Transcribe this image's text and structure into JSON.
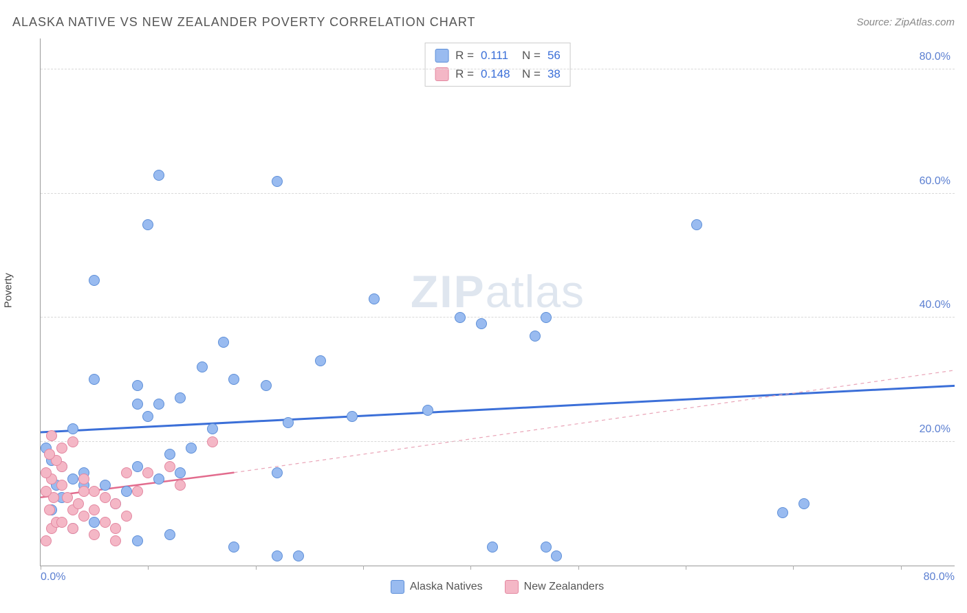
{
  "title": "ALASKA NATIVE VS NEW ZEALANDER POVERTY CORRELATION CHART",
  "source": "Source: ZipAtlas.com",
  "ylabel": "Poverty",
  "watermark_bold": "ZIP",
  "watermark_rest": "atlas",
  "chart": {
    "type": "scatter",
    "background_color": "#ffffff",
    "grid_color": "#d8d8d8",
    "axis_color": "#999999",
    "tick_label_color": "#5b7fd1",
    "tick_fontsize": 16,
    "xlim": [
      0,
      85
    ],
    "ylim": [
      0,
      85
    ],
    "xtick_positions": [
      0,
      10,
      20,
      30,
      40,
      50,
      60,
      70,
      80
    ],
    "xaxis_labels": {
      "left": "0.0%",
      "right": "80.0%"
    },
    "yticks": [
      {
        "pos": 20,
        "label": "20.0%"
      },
      {
        "pos": 40,
        "label": "40.0%"
      },
      {
        "pos": 60,
        "label": "60.0%"
      },
      {
        "pos": 80,
        "label": "80.0%"
      }
    ],
    "marker_radius": 8,
    "marker_border_width": 1.5,
    "marker_fill_opacity": 0.35,
    "series": [
      {
        "name": "Alaska Natives",
        "color_fill": "#99bbf0",
        "color_border": "#5e8fd8",
        "trend": {
          "y0": 21.5,
          "y1": 29,
          "color": "#3b6fd8",
          "width": 3,
          "dash": "none"
        },
        "trend_ext": null,
        "R": "0.111",
        "N": "56",
        "points": [
          [
            42,
            3
          ],
          [
            47,
            3
          ],
          [
            48,
            1.5
          ],
          [
            69,
            8.5
          ],
          [
            71,
            10
          ],
          [
            18,
            3
          ],
          [
            22,
            1.5
          ],
          [
            24,
            1.5
          ],
          [
            12,
            5
          ],
          [
            9,
            4
          ],
          [
            3,
            6
          ],
          [
            5,
            7
          ],
          [
            1,
            9
          ],
          [
            2,
            11
          ],
          [
            1.5,
            13
          ],
          [
            3,
            14
          ],
          [
            4,
            13
          ],
          [
            2,
            16
          ],
          [
            1,
            17
          ],
          [
            0.5,
            19
          ],
          [
            4,
            15
          ],
          [
            6,
            13
          ],
          [
            8,
            12
          ],
          [
            7,
            10
          ],
          [
            9,
            16
          ],
          [
            11,
            14
          ],
          [
            12,
            18
          ],
          [
            14,
            19
          ],
          [
            13,
            15
          ],
          [
            16,
            22
          ],
          [
            10,
            24
          ],
          [
            11,
            26
          ],
          [
            13,
            27
          ],
          [
            9,
            26
          ],
          [
            9,
            29
          ],
          [
            3,
            22
          ],
          [
            5,
            30
          ],
          [
            15,
            32
          ],
          [
            18,
            30
          ],
          [
            17,
            36
          ],
          [
            21,
            29
          ],
          [
            22,
            15
          ],
          [
            23,
            23
          ],
          [
            26,
            33
          ],
          [
            29,
            24
          ],
          [
            31,
            43
          ],
          [
            36,
            25
          ],
          [
            41,
            39
          ],
          [
            39,
            40
          ],
          [
            46,
            37
          ],
          [
            47,
            40
          ],
          [
            61,
            55
          ],
          [
            11,
            63
          ],
          [
            22,
            62
          ],
          [
            10,
            55
          ],
          [
            5,
            46
          ]
        ]
      },
      {
        "name": "New Zealanders",
        "color_fill": "#f4b7c6",
        "color_border": "#e387a0",
        "trend": {
          "y0": 11,
          "y1_at_x": [
            18,
            15
          ],
          "color": "#e26b8d",
          "width": 2.5,
          "dash": "none"
        },
        "trend_ext": {
          "from": [
            18,
            15
          ],
          "to": [
            85,
            31.5
          ],
          "color": "#e9a3b6",
          "width": 1.2,
          "dash": "5,5"
        },
        "R": "0.148",
        "N": "38",
        "points": [
          [
            0.5,
            4
          ],
          [
            1,
            6
          ],
          [
            1.5,
            7
          ],
          [
            0.8,
            9
          ],
          [
            1.2,
            11
          ],
          [
            0.5,
            12
          ],
          [
            1,
            14
          ],
          [
            2,
            13
          ],
          [
            2.5,
            11
          ],
          [
            3,
            9
          ],
          [
            2,
            7
          ],
          [
            3,
            6
          ],
          [
            4,
            8
          ],
          [
            3.5,
            10
          ],
          [
            4,
            12
          ],
          [
            2,
            16
          ],
          [
            1.5,
            17
          ],
          [
            0.8,
            18
          ],
          [
            2,
            19
          ],
          [
            3,
            20
          ],
          [
            1,
            21
          ],
          [
            0.5,
            15
          ],
          [
            4,
            14
          ],
          [
            5,
            12
          ],
          [
            6,
            11
          ],
          [
            5,
            9
          ],
          [
            6,
            7
          ],
          [
            7,
            6
          ],
          [
            8,
            8
          ],
          [
            7,
            10
          ],
          [
            9,
            12
          ],
          [
            8,
            15
          ],
          [
            10,
            15
          ],
          [
            12,
            16
          ],
          [
            13,
            13
          ],
          [
            16,
            20
          ],
          [
            7,
            4
          ],
          [
            5,
            5
          ]
        ]
      }
    ]
  },
  "stats_box_labels": {
    "R": "R =",
    "N": "N ="
  },
  "bottom_legend": [
    {
      "label": "Alaska Natives",
      "fill": "#99bbf0",
      "border": "#5e8fd8"
    },
    {
      "label": "New Zealanders",
      "fill": "#f4b7c6",
      "border": "#e387a0"
    }
  ]
}
